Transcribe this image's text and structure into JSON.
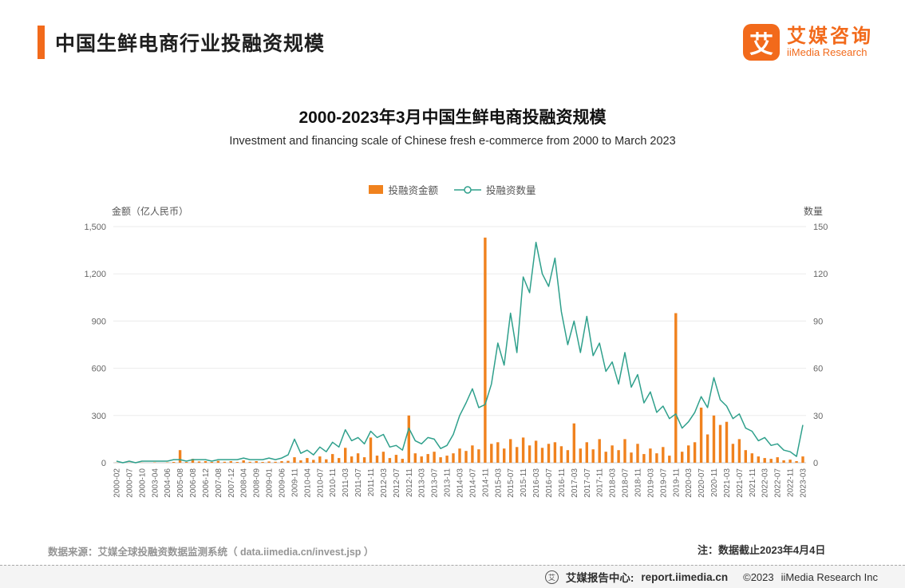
{
  "header": {
    "title": "中国生鲜电商行业投融资规模",
    "logo_glyph": "艾",
    "brand_cn": "艾媒咨询",
    "brand_en": "iiMedia Research"
  },
  "notes": {
    "source": "数据来源：艾媒全球投融资数据监测系统（ data.iimedia.cn/invest.jsp ）",
    "cutoff": "注：数据截止2023年4月4日"
  },
  "footer": {
    "icon_glyph": "艾",
    "report_center": "艾媒报告中心:",
    "domain": "report.iimedia.cn",
    "copyright": "©2023",
    "company": "iiMedia Research Inc"
  },
  "chart_data": {
    "type": "bar+line",
    "title": "2000-2023年3月中国生鲜电商投融资规模",
    "subtitle": "Investment and financing scale of Chinese fresh e-commerce from 2000 to March 2023",
    "legend": [
      {
        "label": "投融资金额",
        "type": "bar",
        "color": "#F0821E"
      },
      {
        "label": "投融资数量",
        "type": "line",
        "color": "#2FA08C"
      }
    ],
    "legend_position": "top",
    "grid": true,
    "y_left": {
      "label": "金额（亿人民币）",
      "max": 1500,
      "ticks": [
        "0",
        "300",
        "600",
        "900",
        "1,200",
        "1,500"
      ]
    },
    "y_right": {
      "label": "数量",
      "max": 150,
      "ticks": [
        "0",
        "30",
        "60",
        "90",
        "120",
        "150"
      ]
    },
    "points_per_label": 2,
    "x_tick_labels": [
      "2000-02",
      "2000-07",
      "2000-10",
      "2003-04",
      "2004-06",
      "2005-08",
      "2006-08",
      "2006-12",
      "2007-08",
      "2007-12",
      "2008-04",
      "2008-09",
      "2009-01",
      "2009-06",
      "2009-11",
      "2010-04",
      "2010-07",
      "2010-11",
      "2011-03",
      "2011-07",
      "2011-11",
      "2012-03",
      "2012-07",
      "2012-11",
      "2013-03",
      "2013-07",
      "2013-11",
      "2014-03",
      "2014-07",
      "2014-11",
      "2015-03",
      "2015-07",
      "2015-11",
      "2016-03",
      "2016-07",
      "2016-11",
      "2017-03",
      "2017-07",
      "2017-11",
      "2018-03",
      "2018-07",
      "2018-11",
      "2019-03",
      "2019-07",
      "2019-11",
      "2020-03",
      "2020-07",
      "2020-11",
      "2021-03",
      "2021-07",
      "2021-11",
      "2022-03",
      "2022-07",
      "2022-11",
      "2023-03"
    ],
    "series": [
      {
        "name": "投融资金额",
        "axis": "left",
        "type": "bar",
        "values": [
          1,
          0,
          1,
          0,
          1,
          0,
          2,
          0,
          2,
          5,
          80,
          5,
          25,
          8,
          10,
          5,
          12,
          6,
          10,
          5,
          15,
          6,
          10,
          5,
          8,
          6,
          10,
          12,
          35,
          15,
          30,
          18,
          40,
          22,
          55,
          30,
          95,
          40,
          60,
          35,
          160,
          45,
          70,
          30,
          50,
          25,
          300,
          60,
          40,
          55,
          70,
          35,
          45,
          60,
          90,
          75,
          110,
          85,
          1430,
          120,
          130,
          90,
          150,
          100,
          160,
          110,
          140,
          95,
          120,
          130,
          105,
          80,
          250,
          90,
          130,
          85,
          150,
          70,
          110,
          80,
          150,
          65,
          120,
          55,
          90,
          60,
          100,
          45,
          950,
          70,
          110,
          130,
          350,
          180,
          300,
          240,
          260,
          120,
          150,
          80,
          60,
          40,
          30,
          25,
          35,
          15,
          20,
          10,
          40
        ]
      },
      {
        "name": "投融资数量",
        "axis": "right",
        "type": "line",
        "values": [
          1,
          0,
          1,
          0,
          1,
          1,
          1,
          1,
          1,
          2,
          2,
          1,
          2,
          2,
          2,
          1,
          2,
          2,
          2,
          2,
          3,
          2,
          2,
          2,
          3,
          2,
          3,
          5,
          15,
          6,
          8,
          5,
          10,
          7,
          13,
          10,
          21,
          14,
          16,
          12,
          20,
          16,
          18,
          10,
          11,
          8,
          22,
          14,
          12,
          16,
          15,
          9,
          11,
          18,
          30,
          38,
          47,
          35,
          37,
          50,
          76,
          62,
          95,
          70,
          118,
          108,
          140,
          120,
          112,
          130,
          96,
          75,
          90,
          70,
          93,
          68,
          76,
          58,
          64,
          50,
          70,
          48,
          56,
          38,
          45,
          32,
          36,
          28,
          31,
          22,
          26,
          32,
          42,
          35,
          54,
          40,
          36,
          28,
          31,
          22,
          20,
          14,
          16,
          11,
          12,
          8,
          7,
          4,
          24
        ]
      }
    ]
  }
}
